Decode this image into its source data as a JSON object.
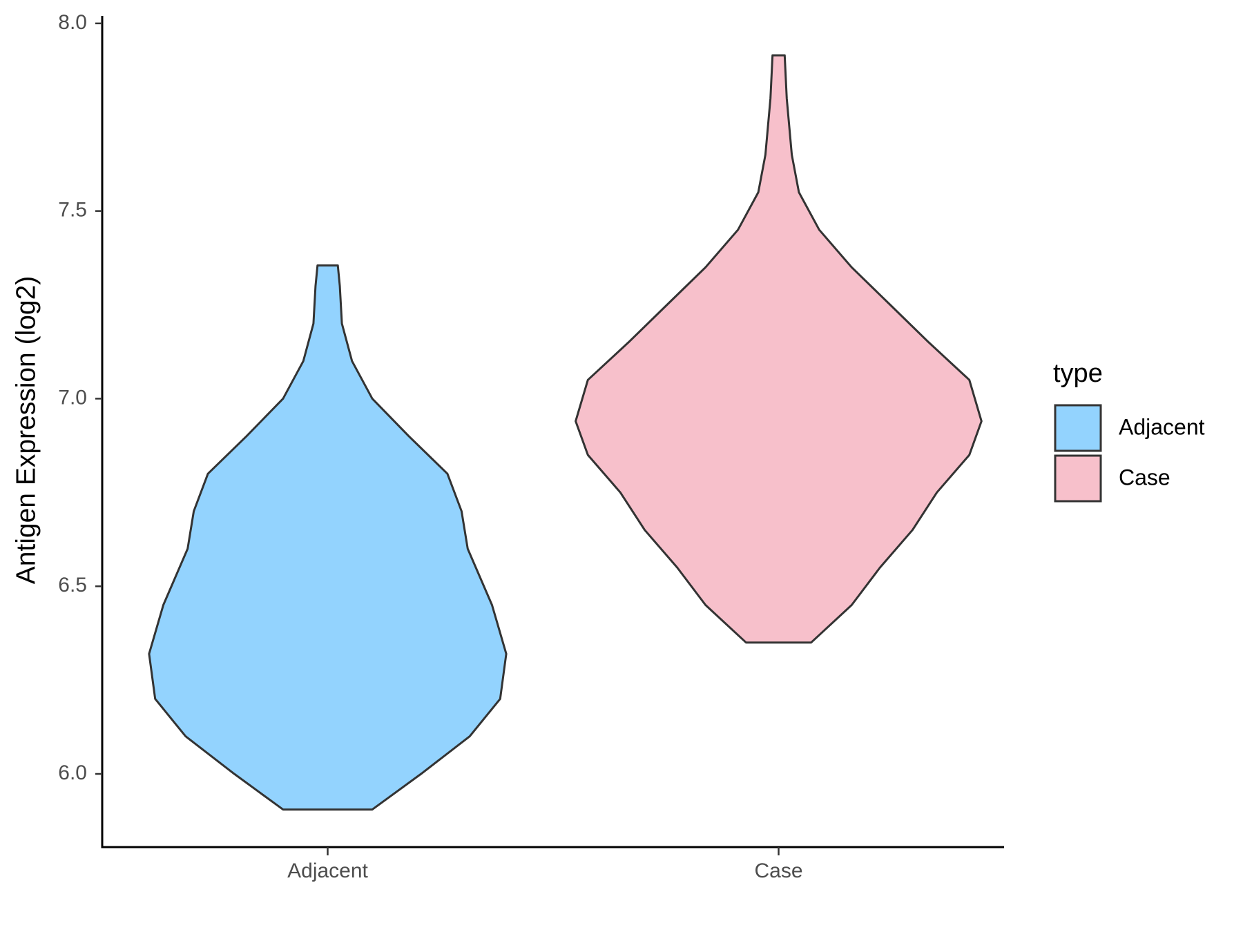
{
  "chart_data": {
    "type": "violin",
    "y_label": "Antigen Expression (log2)",
    "legend_title": "type",
    "categories": [
      "Adjacent",
      "Case"
    ],
    "series": [
      {
        "name": "Adjacent",
        "color": "#93d3fe",
        "y": [
          5.905,
          6.0,
          6.1,
          6.2,
          6.32,
          6.45,
          6.6,
          6.7,
          6.8,
          6.9,
          7.0,
          7.1,
          7.2,
          7.3,
          7.355
        ],
        "widths": [
          0.22,
          0.46,
          0.7,
          0.85,
          0.88,
          0.81,
          0.69,
          0.66,
          0.59,
          0.4,
          0.22,
          0.12,
          0.07,
          0.06,
          0.05
        ]
      },
      {
        "name": "Case",
        "color": "#f7c0cb",
        "y": [
          6.35,
          6.45,
          6.55,
          6.65,
          6.75,
          6.85,
          6.94,
          7.05,
          7.15,
          7.25,
          7.35,
          7.45,
          7.55,
          7.65,
          7.8,
          7.915
        ],
        "widths": [
          0.16,
          0.36,
          0.5,
          0.66,
          0.78,
          0.94,
          1.0,
          0.94,
          0.74,
          0.55,
          0.36,
          0.2,
          0.1,
          0.065,
          0.04,
          0.03
        ]
      }
    ],
    "ylim": [
      5.805,
      8.02
    ],
    "yticks": [
      {
        "value": 6,
        "label": "6.0"
      },
      6.5,
      {
        "value": 7,
        "label": "7.0"
      },
      7.5,
      {
        "value": 8,
        "label": "8.0"
      }
    ],
    "legend_position": "right",
    "grid": false
  }
}
